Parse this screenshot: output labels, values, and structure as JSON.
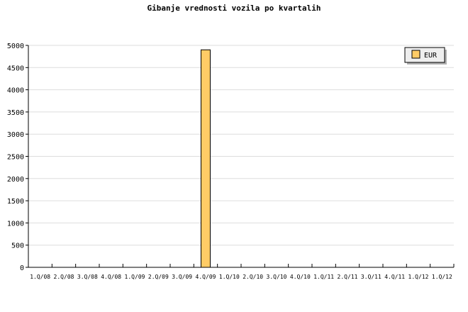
{
  "chart_data": {
    "type": "bar",
    "title": "Gibanje vrednosti vozila po kvartalih",
    "xlabel": "",
    "ylabel": "",
    "categories": [
      "1.Q/08",
      "2.Q/08",
      "3.Q/08",
      "4.Q/08",
      "1.Q/09",
      "2.Q/09",
      "3.Q/09",
      "4.Q/09",
      "1.Q/10",
      "2.Q/10",
      "3.Q/10",
      "4.Q/10",
      "1.Q/11",
      "2.Q/11",
      "3.Q/11",
      "4.Q/11",
      "1.Q/12",
      "1.Q/12"
    ],
    "series": [
      {
        "name": "EUR",
        "values": [
          0,
          0,
          0,
          0,
          0,
          0,
          0,
          4900,
          0,
          0,
          0,
          0,
          0,
          0,
          0,
          0,
          0,
          0
        ],
        "color": "#ffcc66"
      }
    ],
    "ylim": [
      0,
      5000
    ],
    "yticks": [
      0,
      500,
      1000,
      1500,
      2000,
      2500,
      3000,
      3500,
      4000,
      4500,
      5000
    ],
    "grid": true,
    "legend_position": "top-right"
  }
}
